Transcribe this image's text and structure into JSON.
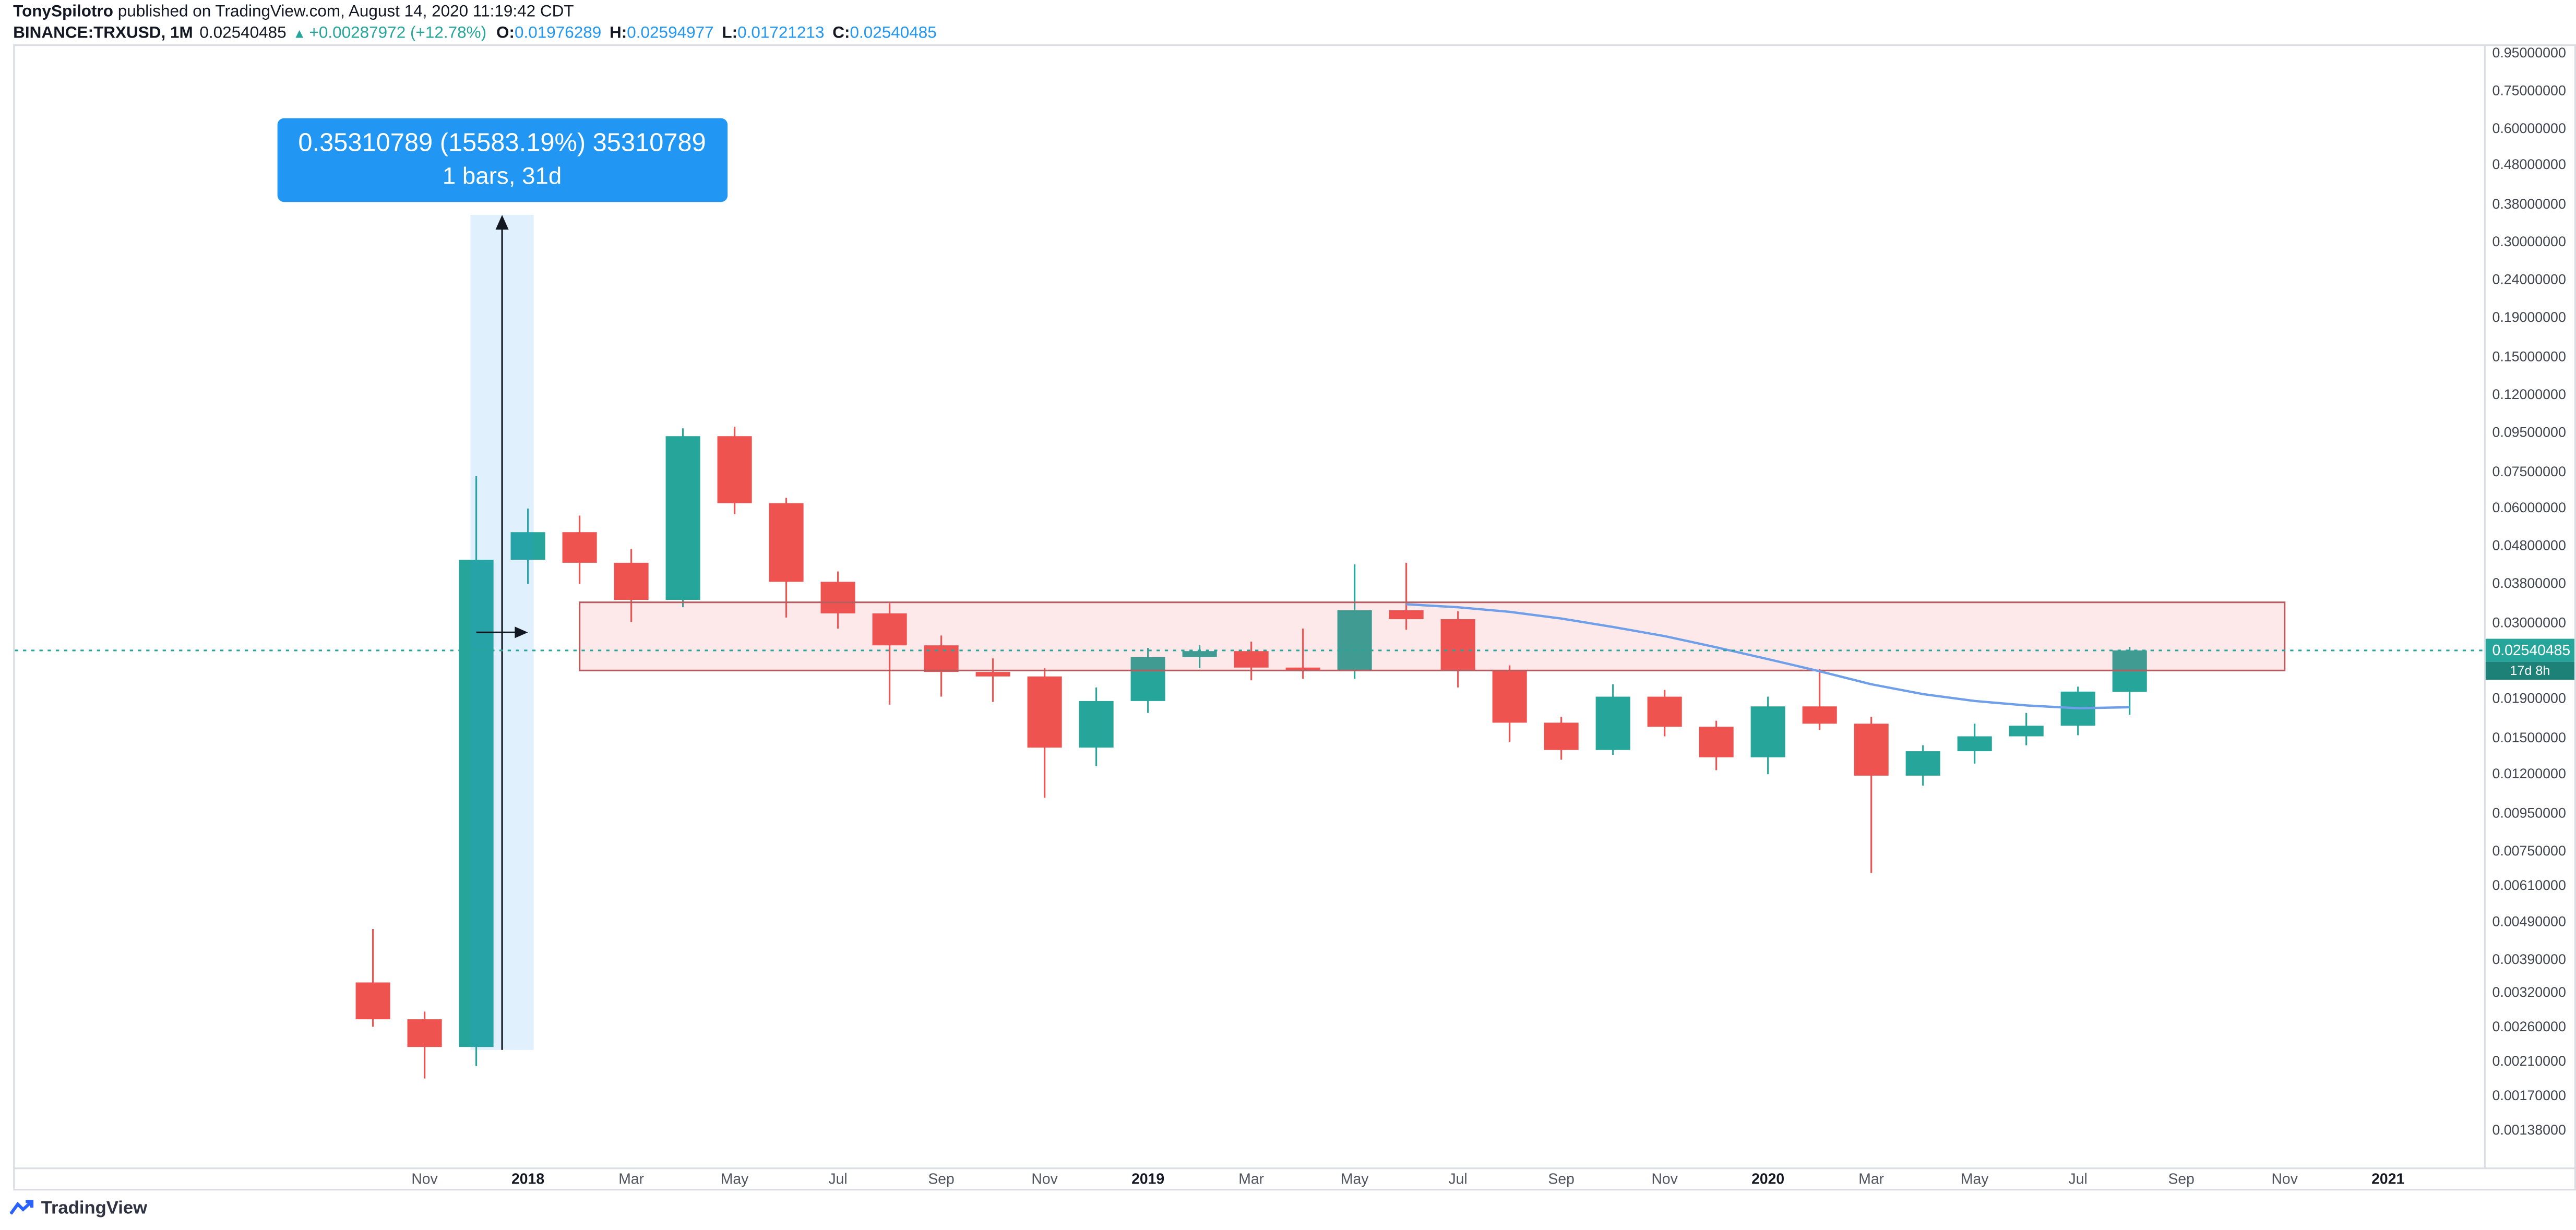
{
  "header": {
    "publisher": "TonySpilotro",
    "published_suffix": " published on TradingView.com, August 14, 2020 11:19:42 CDT",
    "symbol": "BINANCE:TRXUSD, 1M",
    "last_price": "0.02540485",
    "triangle": "▲",
    "change": "+0.00287972 (+12.78%)",
    "o_label": "O:",
    "o_value": "0.01976289",
    "h_label": "H:",
    "h_value": "0.02594977",
    "l_label": "L:",
    "l_value": "0.01721213",
    "c_label": "C:",
    "c_value": "0.02540485"
  },
  "measure_tooltip": {
    "line1": "0.35310789 (15583.19%) 35310789",
    "line2": "1 bars, 31d"
  },
  "price_label": {
    "value": "0.02540485",
    "countdown": "17d 8h"
  },
  "footer": {
    "brand": "TradingView"
  },
  "colors": {
    "up": "#26a69a",
    "down": "#ef5350",
    "ohlc_value": "#2196f3",
    "measure_blue": "#2196f3",
    "measure_band": "rgba(33,150,243,0.14)",
    "measure_line": "#131722",
    "zone_fill": "rgba(242,84,91,0.13)",
    "zone_border": "#b75c5f",
    "ma_line": "#6e9fe8",
    "last_price_bg": "#26a69a",
    "countdown_bg": "#1e8178"
  },
  "chart_data": {
    "type": "candlestick",
    "title": "BINANCE:TRXUSD monthly chart",
    "symbol": "BINANCE:TRXUSD",
    "interval": "1M",
    "scale": "log",
    "last_price": 0.02540485,
    "candles": [
      {
        "t": "2017-10",
        "o": 0.0034,
        "h": 0.0047,
        "l": 0.0026,
        "c": 0.00272
      },
      {
        "t": "2017-11",
        "o": 0.00272,
        "h": 0.00285,
        "l": 0.0019,
        "c": 0.0023
      },
      {
        "t": "2017-12",
        "o": 0.0023,
        "h": 0.073,
        "l": 0.00205,
        "c": 0.044
      },
      {
        "t": "2018-01",
        "o": 0.044,
        "h": 0.06,
        "l": 0.038,
        "c": 0.052
      },
      {
        "t": "2018-02",
        "o": 0.052,
        "h": 0.0575,
        "l": 0.038,
        "c": 0.0432
      },
      {
        "t": "2018-03",
        "o": 0.0432,
        "h": 0.047,
        "l": 0.0302,
        "c": 0.0345
      },
      {
        "t": "2018-04",
        "o": 0.0345,
        "h": 0.0975,
        "l": 0.033,
        "c": 0.093
      },
      {
        "t": "2018-05",
        "o": 0.093,
        "h": 0.0985,
        "l": 0.058,
        "c": 0.062
      },
      {
        "t": "2018-06",
        "o": 0.062,
        "h": 0.064,
        "l": 0.031,
        "c": 0.0385
      },
      {
        "t": "2018-07",
        "o": 0.0385,
        "h": 0.041,
        "l": 0.029,
        "c": 0.0318
      },
      {
        "t": "2018-08",
        "o": 0.0318,
        "h": 0.0338,
        "l": 0.0183,
        "c": 0.0262
      },
      {
        "t": "2018-09",
        "o": 0.0262,
        "h": 0.0278,
        "l": 0.0192,
        "c": 0.0223
      },
      {
        "t": "2018-10",
        "o": 0.0223,
        "h": 0.0242,
        "l": 0.0186,
        "c": 0.0217
      },
      {
        "t": "2018-11",
        "o": 0.0217,
        "h": 0.0228,
        "l": 0.0104,
        "c": 0.0141
      },
      {
        "t": "2018-12",
        "o": 0.0141,
        "h": 0.0203,
        "l": 0.0126,
        "c": 0.0187
      },
      {
        "t": "2019-01",
        "o": 0.0187,
        "h": 0.0258,
        "l": 0.0174,
        "c": 0.0244
      },
      {
        "t": "2019-02",
        "o": 0.0244,
        "h": 0.0262,
        "l": 0.0228,
        "c": 0.0253
      },
      {
        "t": "2019-03",
        "o": 0.0253,
        "h": 0.0268,
        "l": 0.0212,
        "c": 0.0229
      },
      {
        "t": "2019-04",
        "o": 0.0229,
        "h": 0.029,
        "l": 0.0214,
        "c": 0.0224
      },
      {
        "t": "2019-05",
        "o": 0.0224,
        "h": 0.0428,
        "l": 0.0214,
        "c": 0.0324
      },
      {
        "t": "2019-06",
        "o": 0.0324,
        "h": 0.0432,
        "l": 0.0288,
        "c": 0.0307
      },
      {
        "t": "2019-07",
        "o": 0.0307,
        "h": 0.0322,
        "l": 0.0203,
        "c": 0.0225
      },
      {
        "t": "2019-08",
        "o": 0.0225,
        "h": 0.0232,
        "l": 0.0146,
        "c": 0.0164
      },
      {
        "t": "2019-09",
        "o": 0.0164,
        "h": 0.017,
        "l": 0.0131,
        "c": 0.0139
      },
      {
        "t": "2019-10",
        "o": 0.0139,
        "h": 0.0207,
        "l": 0.0135,
        "c": 0.0192
      },
      {
        "t": "2019-11",
        "o": 0.0192,
        "h": 0.02,
        "l": 0.0151,
        "c": 0.016
      },
      {
        "t": "2019-12",
        "o": 0.016,
        "h": 0.0166,
        "l": 0.0123,
        "c": 0.0133
      },
      {
        "t": "2020-01",
        "o": 0.0133,
        "h": 0.0192,
        "l": 0.012,
        "c": 0.0181
      },
      {
        "t": "2020-02",
        "o": 0.0181,
        "h": 0.0227,
        "l": 0.0157,
        "c": 0.0163
      },
      {
        "t": "2020-03",
        "o": 0.0163,
        "h": 0.017,
        "l": 0.0066,
        "c": 0.0119
      },
      {
        "t": "2020-04",
        "o": 0.0119,
        "h": 0.0143,
        "l": 0.0112,
        "c": 0.0138
      },
      {
        "t": "2020-05",
        "o": 0.0138,
        "h": 0.0163,
        "l": 0.0128,
        "c": 0.0151
      },
      {
        "t": "2020-06",
        "o": 0.0151,
        "h": 0.0174,
        "l": 0.0143,
        "c": 0.0161
      },
      {
        "t": "2020-07",
        "o": 0.0161,
        "h": 0.0204,
        "l": 0.0152,
        "c": 0.0198
      },
      {
        "t": "2020-08",
        "o": 0.01976289,
        "h": 0.02594977,
        "l": 0.01721213,
        "c": 0.02540485
      }
    ],
    "zone": {
      "from_index": 4,
      "to_index": 37,
      "price_top": 0.034,
      "price_bottom": 0.0225
    },
    "measure": {
      "from_index": 2,
      "to_index": 3,
      "from_price": 0.00226,
      "to_price": 0.35537
    },
    "ma_line": {
      "start_index": 20,
      "values": [
        0.0336,
        0.033,
        0.0321,
        0.0308,
        0.0293,
        0.0277,
        0.0259,
        0.0241,
        0.0224,
        0.0207,
        0.0195,
        0.0187,
        0.0182,
        0.0179,
        0.018
      ]
    },
    "y_axis_labels": [
      "0.95000000",
      "0.75000000",
      "0.60000000",
      "0.48000000",
      "0.38000000",
      "0.30000000",
      "0.24000000",
      "0.19000000",
      "0.15000000",
      "0.12000000",
      "0.09500000",
      "0.07500000",
      "0.06000000",
      "0.04800000",
      "0.03800000",
      "0.03000000",
      "0.01900000",
      "0.01500000",
      "0.01200000",
      "0.00950000",
      "0.00750000",
      "0.00610000",
      "0.00490000",
      "0.00390000",
      "0.00320000",
      "0.00260000",
      "0.00210000",
      "0.00170000",
      "0.00138000"
    ],
    "x_axis_ticks": [
      {
        "label": "Nov",
        "i": 1
      },
      {
        "label": "2018",
        "i": 3,
        "year": true
      },
      {
        "label": "Mar",
        "i": 5
      },
      {
        "label": "May",
        "i": 7
      },
      {
        "label": "Jul",
        "i": 9
      },
      {
        "label": "Sep",
        "i": 11
      },
      {
        "label": "Nov",
        "i": 13
      },
      {
        "label": "2019",
        "i": 15,
        "year": true
      },
      {
        "label": "Mar",
        "i": 17
      },
      {
        "label": "May",
        "i": 19
      },
      {
        "label": "Jul",
        "i": 21
      },
      {
        "label": "Sep",
        "i": 23
      },
      {
        "label": "Nov",
        "i": 25
      },
      {
        "label": "2020",
        "i": 27,
        "year": true
      },
      {
        "label": "Mar",
        "i": 29
      },
      {
        "label": "May",
        "i": 31
      },
      {
        "label": "Jul",
        "i": 33
      },
      {
        "label": "Sep",
        "i": 35
      },
      {
        "label": "Nov",
        "i": 37
      },
      {
        "label": "2021",
        "i": 39,
        "year": true
      }
    ]
  }
}
